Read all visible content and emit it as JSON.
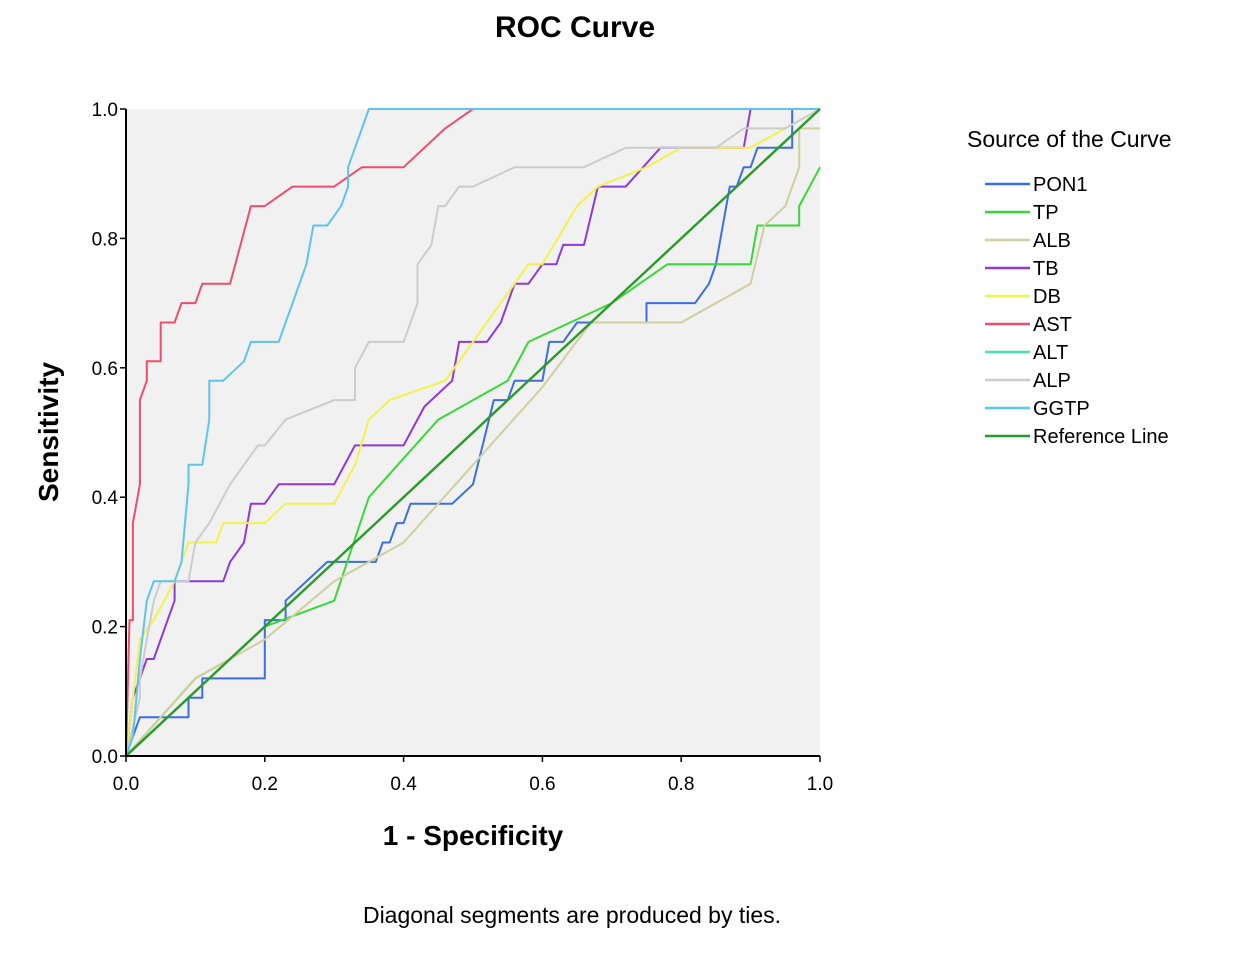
{
  "chart_data": {
    "type": "line",
    "title": "ROC Curve",
    "xlabel": "1 - Specificity",
    "ylabel": "Sensitivity",
    "xlim": [
      0,
      1
    ],
    "ylim": [
      0,
      1
    ],
    "xticks": [
      "0.0",
      "0.2",
      "0.4",
      "0.6",
      "0.8",
      "1.0"
    ],
    "yticks": [
      "0.0",
      "0.2",
      "0.4",
      "0.6",
      "0.8",
      "1.0"
    ],
    "grid": false,
    "plot_background": "#f0f1f0",
    "legend": {
      "title": "Source of the Curve",
      "position": "right"
    },
    "footnote": "Diagonal segments are produced by ties.",
    "series": [
      {
        "name": "PON1",
        "color": "#3b6fe0",
        "x": [
          0,
          0.01,
          0.01,
          0.02,
          0.02,
          0.04,
          0.04,
          0.09,
          0.09,
          0.11,
          0.11,
          0.13,
          0.2,
          0.2,
          0.23,
          0.23,
          0.26,
          0.29,
          0.29,
          0.36,
          0.37,
          0.38,
          0.39,
          0.4,
          0.41,
          0.47,
          0.47,
          0.5,
          0.5,
          0.53,
          0.55,
          0.56,
          0.57,
          0.6,
          0.61,
          0.63,
          0.65,
          0.67,
          0.75,
          0.75,
          0.82,
          0.84,
          0.85,
          0.86,
          0.87,
          0.88,
          0.89,
          0.9,
          0.91,
          0.93,
          0.96,
          0.96,
          1.0
        ],
        "y": [
          0,
          0.03,
          0.03,
          0.06,
          0.06,
          0.06,
          0.06,
          0.06,
          0.09,
          0.09,
          0.12,
          0.12,
          0.12,
          0.21,
          0.21,
          0.24,
          0.27,
          0.3,
          0.3,
          0.3,
          0.33,
          0.33,
          0.36,
          0.36,
          0.39,
          0.39,
          0.39,
          0.42,
          0.42,
          0.55,
          0.55,
          0.58,
          0.58,
          0.58,
          0.64,
          0.64,
          0.67,
          0.67,
          0.67,
          0.7,
          0.7,
          0.73,
          0.76,
          0.82,
          0.88,
          0.88,
          0.91,
          0.91,
          0.94,
          0.94,
          0.94,
          1.0,
          1.0
        ]
      },
      {
        "name": "TP",
        "color": "#39d839",
        "x": [
          0,
          0.05,
          0.1,
          0.15,
          0.2,
          0.3,
          0.35,
          0.45,
          0.5,
          0.55,
          0.58,
          0.7,
          0.78,
          0.85,
          0.9,
          0.91,
          0.91,
          0.94,
          0.97,
          0.97,
          1.0
        ],
        "y": [
          0,
          0.06,
          0.12,
          0.15,
          0.2,
          0.24,
          0.4,
          0.52,
          0.55,
          0.58,
          0.64,
          0.7,
          0.76,
          0.76,
          0.76,
          0.82,
          0.82,
          0.82,
          0.82,
          0.85,
          0.91
        ]
      },
      {
        "name": "ALB",
        "color": "#cfcf9f",
        "x": [
          0,
          0.05,
          0.1,
          0.2,
          0.3,
          0.4,
          0.5,
          0.6,
          0.67,
          0.8,
          0.85,
          0.9,
          0.92,
          0.95,
          0.97,
          0.97,
          1.0
        ],
        "y": [
          0,
          0.06,
          0.12,
          0.18,
          0.27,
          0.33,
          0.45,
          0.57,
          0.67,
          0.67,
          0.7,
          0.73,
          0.82,
          0.85,
          0.91,
          0.97,
          0.97
        ]
      },
      {
        "name": "TB",
        "color": "#8e3ad8",
        "x": [
          0,
          0.01,
          0.01,
          0.03,
          0.04,
          0.05,
          0.06,
          0.07,
          0.07,
          0.09,
          0.14,
          0.15,
          0.17,
          0.18,
          0.2,
          0.22,
          0.3,
          0.33,
          0.4,
          0.43,
          0.47,
          0.48,
          0.52,
          0.54,
          0.56,
          0.58,
          0.6,
          0.62,
          0.63,
          0.66,
          0.68,
          0.72,
          0.77,
          0.8,
          0.89,
          0.9,
          1.0
        ],
        "y": [
          0,
          0.09,
          0.09,
          0.15,
          0.15,
          0.18,
          0.21,
          0.24,
          0.27,
          0.27,
          0.27,
          0.3,
          0.33,
          0.39,
          0.39,
          0.42,
          0.42,
          0.48,
          0.48,
          0.54,
          0.58,
          0.64,
          0.64,
          0.67,
          0.73,
          0.73,
          0.76,
          0.76,
          0.79,
          0.79,
          0.88,
          0.88,
          0.94,
          0.94,
          0.94,
          1.0,
          1.0
        ]
      },
      {
        "name": "DB",
        "color": "#f2f24a",
        "x": [
          0,
          0.02,
          0.02,
          0.04,
          0.04,
          0.07,
          0.08,
          0.09,
          0.11,
          0.13,
          0.14,
          0.2,
          0.23,
          0.3,
          0.33,
          0.35,
          0.38,
          0.46,
          0.5,
          0.56,
          0.58,
          0.6,
          0.65,
          0.68,
          0.75,
          0.8,
          0.9,
          0.95,
          1.0
        ],
        "y": [
          0,
          0.18,
          0.18,
          0.21,
          0.21,
          0.27,
          0.3,
          0.33,
          0.33,
          0.33,
          0.36,
          0.36,
          0.39,
          0.39,
          0.45,
          0.52,
          0.55,
          0.58,
          0.64,
          0.73,
          0.76,
          0.76,
          0.85,
          0.88,
          0.91,
          0.94,
          0.94,
          0.97,
          1.0
        ]
      },
      {
        "name": "AST",
        "color": "#ee4e6e",
        "x": [
          0,
          0.005,
          0.01,
          0.01,
          0.02,
          0.02,
          0.03,
          0.03,
          0.05,
          0.05,
          0.07,
          0.08,
          0.1,
          0.11,
          0.15,
          0.18,
          0.2,
          0.24,
          0.3,
          0.34,
          0.4,
          0.46,
          0.5,
          0.51,
          1.0
        ],
        "y": [
          0,
          0.21,
          0.21,
          0.36,
          0.42,
          0.55,
          0.58,
          0.61,
          0.61,
          0.67,
          0.67,
          0.7,
          0.7,
          0.73,
          0.73,
          0.85,
          0.85,
          0.88,
          0.88,
          0.91,
          0.91,
          0.97,
          1.0,
          1.0,
          1.0
        ]
      },
      {
        "name": "ALT",
        "color": "#46e4b0",
        "x": [
          0,
          0.01,
          0.02,
          0.03
        ],
        "y": [
          0,
          0.01,
          0.02,
          0.03
        ]
      },
      {
        "name": "ALP",
        "color": "#cccccc",
        "x": [
          0,
          0.02,
          0.02,
          0.04,
          0.05,
          0.09,
          0.1,
          0.12,
          0.15,
          0.19,
          0.2,
          0.23,
          0.3,
          0.33,
          0.33,
          0.35,
          0.4,
          0.42,
          0.42,
          0.44,
          0.45,
          0.46,
          0.48,
          0.5,
          0.56,
          0.6,
          0.66,
          0.72,
          0.85,
          0.89,
          0.9,
          0.95,
          1.0
        ],
        "y": [
          0,
          0.09,
          0.12,
          0.24,
          0.27,
          0.27,
          0.33,
          0.36,
          0.42,
          0.48,
          0.48,
          0.52,
          0.55,
          0.55,
          0.6,
          0.64,
          0.64,
          0.7,
          0.76,
          0.79,
          0.85,
          0.85,
          0.88,
          0.88,
          0.91,
          0.91,
          0.91,
          0.94,
          0.94,
          0.97,
          0.97,
          0.97,
          1.0
        ]
      },
      {
        "name": "GGTP",
        "color": "#5ec4ee",
        "x": [
          0,
          0.01,
          0.02,
          0.03,
          0.04,
          0.07,
          0.08,
          0.09,
          0.09,
          0.11,
          0.12,
          0.12,
          0.14,
          0.17,
          0.18,
          0.22,
          0.23,
          0.24,
          0.26,
          0.27,
          0.29,
          0.31,
          0.32,
          0.32,
          0.33,
          0.34,
          0.35,
          1.0
        ],
        "y": [
          0,
          0.03,
          0.15,
          0.24,
          0.27,
          0.27,
          0.3,
          0.42,
          0.45,
          0.45,
          0.52,
          0.58,
          0.58,
          0.61,
          0.64,
          0.64,
          0.67,
          0.7,
          0.76,
          0.82,
          0.82,
          0.85,
          0.88,
          0.91,
          0.94,
          0.97,
          1.0,
          1.0
        ]
      },
      {
        "name": "Reference Line",
        "color": "#2a9a2a",
        "x": [
          0,
          1
        ],
        "y": [
          0,
          1
        ]
      }
    ]
  }
}
